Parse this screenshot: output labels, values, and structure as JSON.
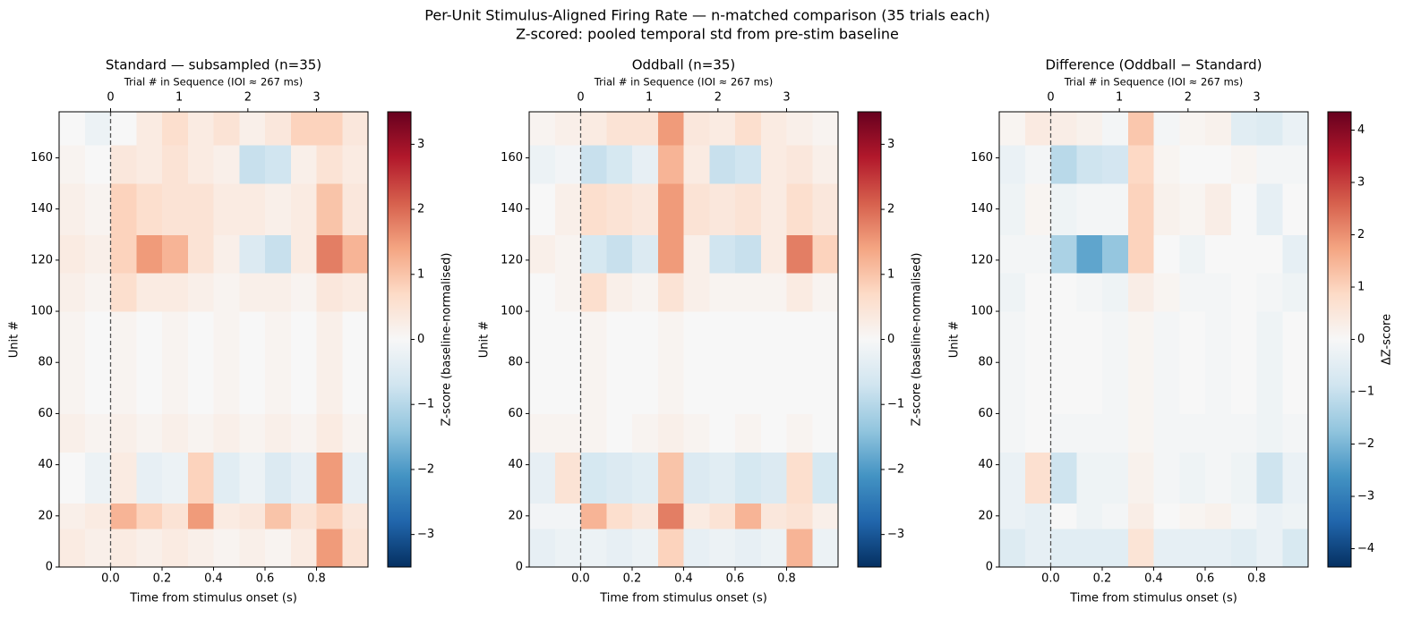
{
  "title": "Per-Unit Stimulus-Aligned Firing Rate — n-matched comparison (35 trials each)",
  "subtitle": "Z-scored: pooled temporal std from pre-stim baseline",
  "chart_data": [
    {
      "type": "heatmap",
      "title": "Standard — subsampled (n=35)",
      "xlabel": "Time from stimulus onset (s)",
      "ylabel": "Unit #",
      "x2label": "Trial # in Sequence (IOI ≈ 267 ms)",
      "xlim": [
        -0.2,
        1.0
      ],
      "xticks": [
        {
          "value": 0,
          "label": "0.0"
        },
        0.2,
        0.4,
        0.6,
        0.8
      ],
      "x2lim": [
        -0.75,
        3.75
      ],
      "x2ticks": [
        0,
        1,
        2,
        3
      ],
      "ylim": [
        0,
        178
      ],
      "yticks": [
        0,
        20,
        40,
        60,
        80,
        100,
        120,
        140,
        160
      ],
      "vline": 0,
      "xbins": [
        -0.2,
        -0.1,
        0,
        0.1,
        0.2,
        0.3,
        0.4,
        0.5,
        0.6,
        0.7,
        0.8,
        0.9,
        1.0
      ],
      "ybins": [
        0,
        15,
        25,
        45,
        60,
        100,
        115,
        130,
        150,
        165,
        178
      ],
      "z": [
        [
          0.3,
          0.2,
          0.3,
          0.2,
          0.3,
          0.2,
          0.1,
          0.2,
          0.1,
          0.3,
          1.5,
          0.5
        ],
        [
          0.2,
          0.3,
          1.2,
          0.8,
          0.5,
          1.5,
          0.3,
          0.4,
          1.0,
          0.5,
          0.8,
          0.4
        ],
        [
          0.0,
          -0.2,
          0.3,
          -0.3,
          -0.2,
          0.8,
          -0.4,
          -0.2,
          -0.5,
          -0.3,
          1.5,
          -0.3
        ],
        [
          0.2,
          0.1,
          0.2,
          0.1,
          0.2,
          0.1,
          0.2,
          0.1,
          0.2,
          0.1,
          0.3,
          0.1
        ],
        [
          0.1,
          0.0,
          0.1,
          0.0,
          0.1,
          0.0,
          0.1,
          0.0,
          0.1,
          0.0,
          0.2,
          0.0
        ],
        [
          0.2,
          0.1,
          0.6,
          0.3,
          0.3,
          0.2,
          0.1,
          0.2,
          0.2,
          0.1,
          0.4,
          0.3
        ],
        [
          0.3,
          0.2,
          0.8,
          1.5,
          1.2,
          0.5,
          0.2,
          -0.5,
          -0.8,
          0.3,
          1.8,
          1.2
        ],
        [
          0.2,
          0.1,
          0.8,
          0.6,
          0.5,
          0.5,
          0.3,
          0.3,
          0.2,
          0.3,
          1.0,
          0.4
        ],
        [
          0.1,
          0.0,
          0.4,
          0.3,
          0.5,
          0.3,
          0.2,
          -0.8,
          -0.7,
          0.2,
          0.5,
          0.3
        ],
        [
          0.0,
          -0.2,
          0.0,
          0.3,
          0.6,
          0.3,
          0.5,
          0.2,
          0.4,
          0.8,
          0.8,
          0.4
        ]
      ],
      "colorbar": {
        "label": "Z-score (baseline-normalised)",
        "lim": [
          -3.5,
          3.5
        ],
        "ticks": [
          {
            "value": -3,
            "label": "−3"
          },
          {
            "value": -2,
            "label": "−2"
          },
          {
            "value": -1,
            "label": "−1"
          },
          0,
          1,
          2,
          3
        ]
      },
      "colormap": [
        "#053061",
        "#2166ac",
        "#4393c3",
        "#92c5de",
        "#d1e5f0",
        "#f7f7f7",
        "#fddbc7",
        "#f4a582",
        "#d6604d",
        "#b2182b",
        "#67001f"
      ]
    },
    {
      "type": "heatmap",
      "title": "Oddball (n=35)",
      "xlabel": "Time from stimulus onset (s)",
      "ylabel": "Unit #",
      "x2label": "Trial # in Sequence (IOI ≈ 267 ms)",
      "xlim": [
        -0.2,
        1.0
      ],
      "xticks": [
        {
          "value": 0,
          "label": "0.0"
        },
        0.2,
        0.4,
        0.6,
        0.8
      ],
      "x2lim": [
        -0.75,
        3.75
      ],
      "x2ticks": [
        0,
        1,
        2,
        3
      ],
      "ylim": [
        0,
        178
      ],
      "yticks": [
        0,
        20,
        40,
        60,
        80,
        100,
        120,
        140,
        160
      ],
      "vline": 0,
      "xbins": [
        -0.2,
        -0.1,
        0,
        0.1,
        0.2,
        0.3,
        0.4,
        0.5,
        0.6,
        0.7,
        0.8,
        0.9,
        1.0
      ],
      "ybins": [
        0,
        15,
        25,
        45,
        60,
        100,
        115,
        130,
        150,
        165,
        178
      ],
      "z": [
        [
          -0.3,
          -0.2,
          -0.2,
          -0.3,
          -0.2,
          0.8,
          -0.3,
          -0.2,
          -0.3,
          -0.2,
          1.2,
          -0.2
        ],
        [
          -0.1,
          -0.1,
          1.2,
          0.6,
          0.4,
          1.8,
          0.3,
          0.5,
          1.2,
          0.4,
          0.5,
          0.2
        ],
        [
          -0.3,
          0.5,
          -0.6,
          -0.5,
          -0.4,
          1.0,
          -0.5,
          -0.4,
          -0.6,
          -0.5,
          0.6,
          -0.6
        ],
        [
          0.1,
          0.1,
          0.1,
          0.0,
          0.1,
          0.2,
          0.1,
          0.0,
          0.1,
          0.0,
          0.1,
          0.0
        ],
        [
          0.0,
          0.0,
          0.1,
          0.0,
          0.0,
          0.1,
          0.0,
          0.0,
          0.0,
          0.0,
          0.0,
          0.0
        ],
        [
          0.0,
          0.1,
          0.6,
          0.2,
          0.1,
          0.5,
          0.2,
          0.1,
          0.1,
          0.1,
          0.3,
          0.1
        ],
        [
          0.2,
          0.1,
          -0.6,
          -0.8,
          -0.5,
          1.5,
          0.2,
          -0.7,
          -0.8,
          0.3,
          1.8,
          0.8
        ],
        [
          0.0,
          0.2,
          0.6,
          0.5,
          0.4,
          1.5,
          0.5,
          0.4,
          0.5,
          0.3,
          0.6,
          0.4
        ],
        [
          -0.2,
          -0.1,
          -0.8,
          -0.6,
          -0.3,
          1.2,
          0.3,
          -0.8,
          -0.7,
          0.3,
          0.4,
          0.2
        ],
        [
          0.1,
          0.2,
          0.3,
          0.5,
          0.5,
          1.5,
          0.4,
          0.3,
          0.6,
          0.3,
          0.2,
          0.1
        ]
      ],
      "colorbar": {
        "label": "Z-score (baseline-normalised)",
        "lim": [
          -3.5,
          3.5
        ],
        "ticks": [
          {
            "value": -3,
            "label": "−3"
          },
          {
            "value": -2,
            "label": "−2"
          },
          {
            "value": -1,
            "label": "−1"
          },
          0,
          1,
          2,
          3
        ]
      },
      "colormap": [
        "#053061",
        "#2166ac",
        "#4393c3",
        "#92c5de",
        "#d1e5f0",
        "#f7f7f7",
        "#fddbc7",
        "#f4a582",
        "#d6604d",
        "#b2182b",
        "#67001f"
      ]
    },
    {
      "type": "heatmap",
      "title": "Difference (Oddball − Standard)",
      "xlabel": "Time from stimulus onset (s)",
      "ylabel": "Unit #",
      "x2label": "Trial # in Sequence (IOI ≈ 267 ms)",
      "xlim": [
        -0.2,
        1.0
      ],
      "xticks": [
        {
          "value": 0,
          "label": "0.0"
        },
        0.2,
        0.4,
        0.6,
        0.8
      ],
      "x2lim": [
        -0.75,
        3.75
      ],
      "x2ticks": [
        0,
        1,
        2,
        3
      ],
      "ylim": [
        0,
        178
      ],
      "yticks": [
        0,
        20,
        40,
        60,
        80,
        100,
        120,
        140,
        160
      ],
      "vline": 0,
      "xbins": [
        -0.2,
        -0.1,
        0,
        0.1,
        0.2,
        0.3,
        0.4,
        0.5,
        0.6,
        0.7,
        0.8,
        0.9,
        1.0
      ],
      "ybins": [
        0,
        15,
        25,
        45,
        60,
        100,
        115,
        130,
        150,
        165,
        178
      ],
      "z": [
        [
          -0.6,
          -0.4,
          -0.5,
          -0.5,
          -0.5,
          0.6,
          -0.4,
          -0.4,
          -0.4,
          -0.5,
          -0.3,
          -0.7
        ],
        [
          -0.3,
          -0.4,
          0.0,
          -0.2,
          -0.1,
          0.3,
          0.0,
          0.1,
          0.2,
          -0.1,
          -0.3,
          -0.2
        ],
        [
          -0.3,
          0.7,
          -0.9,
          -0.2,
          -0.2,
          0.2,
          -0.1,
          -0.2,
          -0.1,
          -0.2,
          -0.9,
          -0.3
        ],
        [
          -0.1,
          0.0,
          -0.1,
          -0.1,
          -0.1,
          0.1,
          -0.1,
          -0.1,
          -0.1,
          -0.1,
          -0.2,
          -0.1
        ],
        [
          -0.1,
          0.0,
          0.0,
          0.0,
          -0.1,
          0.1,
          -0.1,
          0.0,
          -0.1,
          0.0,
          -0.2,
          0.0
        ],
        [
          -0.2,
          0.0,
          0.0,
          -0.1,
          -0.2,
          0.3,
          0.1,
          -0.1,
          -0.1,
          0.0,
          -0.1,
          -0.2
        ],
        [
          -0.1,
          -0.1,
          -1.4,
          -2.3,
          -1.7,
          1.0,
          0.0,
          -0.2,
          0.0,
          0.0,
          0.0,
          -0.4
        ],
        [
          -0.2,
          0.1,
          -0.2,
          -0.1,
          -0.1,
          1.0,
          0.2,
          0.1,
          0.3,
          0.0,
          -0.4,
          0.0
        ],
        [
          -0.3,
          -0.1,
          -1.2,
          -0.9,
          -0.8,
          0.9,
          0.1,
          0.0,
          0.0,
          0.1,
          -0.1,
          -0.1
        ],
        [
          0.1,
          0.4,
          0.3,
          0.2,
          -0.1,
          1.2,
          -0.1,
          0.1,
          0.2,
          -0.5,
          -0.6,
          -0.3
        ]
      ],
      "colorbar": {
        "label": "ΔZ-score",
        "lim": [
          -4.35,
          4.35
        ],
        "ticks": [
          {
            "value": -4,
            "label": "−4"
          },
          {
            "value": -3,
            "label": "−3"
          },
          {
            "value": -2,
            "label": "−2"
          },
          {
            "value": -1,
            "label": "−1"
          },
          0,
          1,
          2,
          3,
          4
        ]
      },
      "colormap": [
        "#053061",
        "#2166ac",
        "#4393c3",
        "#92c5de",
        "#d1e5f0",
        "#f7f7f7",
        "#fddbc7",
        "#f4a582",
        "#d6604d",
        "#b2182b",
        "#67001f"
      ]
    }
  ]
}
